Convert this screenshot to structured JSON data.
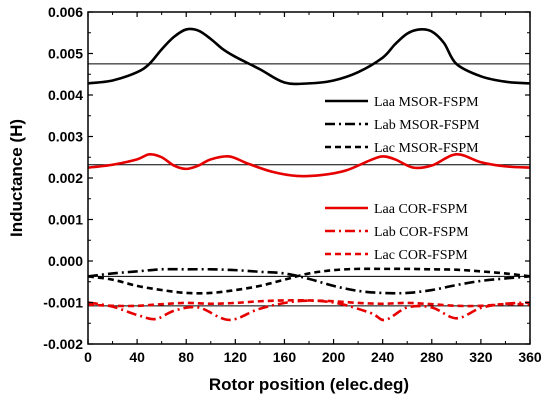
{
  "chart_data": {
    "type": "line",
    "xlabel": "Rotor position (elec.deg)",
    "ylabel": "Inductance (H)",
    "xlim": [
      0,
      360
    ],
    "ylim": [
      -0.002,
      0.006
    ],
    "x_ticks": [
      "0",
      "40",
      "80",
      "120",
      "160",
      "200",
      "240",
      "280",
      "320",
      "360"
    ],
    "y_ticks": [
      "-0.002",
      "-0.001",
      "0.000",
      "0.001",
      "0.002",
      "0.003",
      "0.004",
      "0.005",
      "0.006"
    ],
    "grid": false,
    "legend_position": "right",
    "reference_lines": [
      0.00475,
      0.00232,
      -0.00037,
      -0.00108
    ],
    "series": [
      {
        "name": "Laa MSOR-FSPM",
        "color": "#000000",
        "dash": "solid",
        "x": [
          0,
          20,
          40,
          50,
          60,
          70,
          80,
          90,
          100,
          110,
          120,
          140,
          160,
          180,
          200,
          220,
          240,
          250,
          260,
          270,
          280,
          290,
          300,
          320,
          340,
          360
        ],
        "y": [
          0.00428,
          0.00435,
          0.00455,
          0.00475,
          0.0051,
          0.0054,
          0.00558,
          0.00555,
          0.00535,
          0.0051,
          0.00492,
          0.00462,
          0.0043,
          0.00428,
          0.00435,
          0.00455,
          0.0049,
          0.00522,
          0.00548,
          0.00558,
          0.00553,
          0.00525,
          0.00475,
          0.00445,
          0.00432,
          0.00428
        ]
      },
      {
        "name": "Lab MSOR-FSPM",
        "color": "#000000",
        "dash": "dashdot",
        "x": [
          0,
          20,
          40,
          60,
          80,
          100,
          120,
          140,
          160,
          180,
          200,
          220,
          240,
          260,
          280,
          300,
          320,
          340,
          360
        ],
        "y": [
          -0.00037,
          -0.0003,
          -0.00025,
          -0.0002,
          -0.0002,
          -0.0002,
          -0.00022,
          -0.00026,
          -0.0003,
          -0.00043,
          -0.0006,
          -0.00072,
          -0.00077,
          -0.00077,
          -0.0007,
          -0.00058,
          -0.00048,
          -0.00042,
          -0.00037
        ]
      },
      {
        "name": "Lac MSOR-FSPM",
        "color": "#000000",
        "dash": "dash",
        "x": [
          0,
          20,
          40,
          60,
          80,
          100,
          120,
          140,
          160,
          180,
          200,
          220,
          240,
          260,
          280,
          300,
          320,
          340,
          360
        ],
        "y": [
          -0.00037,
          -0.00045,
          -0.0006,
          -0.0007,
          -0.00077,
          -0.00077,
          -0.0007,
          -0.0006,
          -0.00045,
          -0.0003,
          -0.00022,
          -0.00019,
          -0.00019,
          -0.00019,
          -0.0002,
          -0.00021,
          -0.00025,
          -0.0003,
          -0.00037
        ]
      },
      {
        "name": "Laa COR-FSPM",
        "color": "#e60000",
        "dash": "solid",
        "x": [
          0,
          20,
          40,
          50,
          60,
          70,
          80,
          90,
          100,
          115,
          130,
          150,
          170,
          190,
          210,
          230,
          240,
          250,
          265,
          280,
          300,
          320,
          340,
          360
        ],
        "y": [
          0.00225,
          0.00232,
          0.00245,
          0.00257,
          0.0025,
          0.0023,
          0.00222,
          0.0023,
          0.00245,
          0.00252,
          0.00235,
          0.00215,
          0.00205,
          0.00207,
          0.00218,
          0.00243,
          0.00252,
          0.00245,
          0.00225,
          0.0023,
          0.00257,
          0.00238,
          0.00228,
          0.00225
        ]
      },
      {
        "name": "Lab COR-FSPM",
        "color": "#e60000",
        "dash": "dashdot",
        "x": [
          0,
          20,
          40,
          55,
          70,
          90,
          115,
          140,
          170,
          200,
          230,
          242,
          260,
          280,
          300,
          320,
          340,
          360
        ],
        "y": [
          -0.001,
          -0.0011,
          -0.0013,
          -0.0014,
          -0.0012,
          -0.00112,
          -0.00142,
          -0.00115,
          -0.00097,
          -0.001,
          -0.00125,
          -0.00142,
          -0.00112,
          -0.00112,
          -0.00138,
          -0.00113,
          -0.00103,
          -0.001
        ]
      },
      {
        "name": "Lac COR-FSPM",
        "color": "#e60000",
        "dash": "dash",
        "x": [
          0,
          20,
          40,
          60,
          80,
          100,
          120,
          140,
          160,
          180,
          200,
          220,
          240,
          260,
          280,
          300,
          320,
          340,
          360
        ],
        "y": [
          -0.00105,
          -0.00108,
          -0.00108,
          -0.00104,
          -0.00101,
          -0.00103,
          -0.00101,
          -0.00097,
          -0.00095,
          -0.00095,
          -0.00097,
          -0.00101,
          -0.00103,
          -0.00101,
          -0.00104,
          -0.00108,
          -0.00108,
          -0.00104,
          -0.00105
        ]
      }
    ]
  }
}
